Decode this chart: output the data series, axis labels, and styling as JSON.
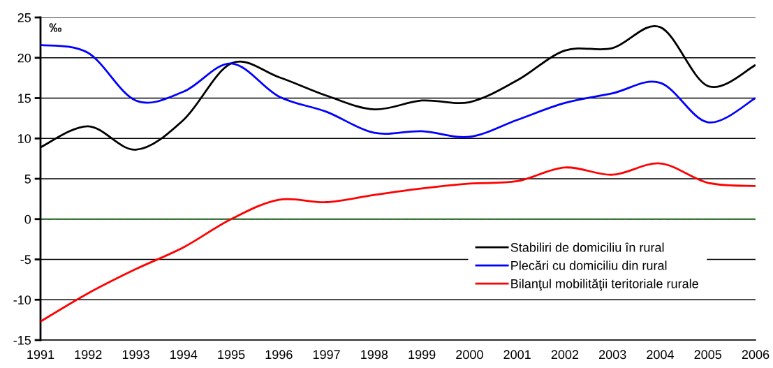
{
  "chart_data": {
    "type": "line",
    "categories": [
      "1991",
      "1992",
      "1993",
      "1994",
      "1995",
      "1996",
      "1997",
      "1998",
      "1999",
      "2000",
      "2001",
      "2002",
      "2003",
      "2004",
      "2005",
      "2006"
    ],
    "series": [
      {
        "name": "Stabiliri de domiciliu în rural",
        "color": "#000000",
        "values": [
          8.9,
          11.5,
          8.6,
          12.3,
          19.3,
          17.6,
          15.3,
          13.6,
          14.7,
          14.5,
          17.2,
          20.9,
          21.2,
          23.8,
          16.5,
          19.1
        ]
      },
      {
        "name": "Plecări cu domiciliu din rural",
        "color": "#0000ff",
        "values": [
          21.6,
          20.6,
          14.7,
          15.8,
          19.3,
          15.2,
          13.3,
          10.7,
          10.9,
          10.2,
          12.3,
          14.4,
          15.6,
          16.9,
          12.0,
          15.0
        ]
      },
      {
        "name": "Bilanţul mobilităţii teritoriale rurale",
        "color": "#ff0000",
        "values": [
          -12.7,
          -9.2,
          -6.2,
          -3.5,
          0.0,
          2.4,
          2.1,
          3.0,
          3.8,
          4.4,
          4.7,
          6.4,
          5.5,
          6.9,
          4.5,
          4.1
        ]
      }
    ],
    "ylim": [
      -15,
      25
    ],
    "yticks": [
      -15,
      -10,
      -5,
      0,
      5,
      10,
      15,
      20,
      25
    ],
    "grid": "y",
    "legend": "bottom right",
    "marker": "none",
    "line_style": "solid",
    "ref_lines": [
      {
        "axis": "y",
        "value": 0,
        "color": "#1a7a1a",
        "line_style": "dashed"
      }
    ],
    "annotations": [
      "‰"
    ]
  }
}
